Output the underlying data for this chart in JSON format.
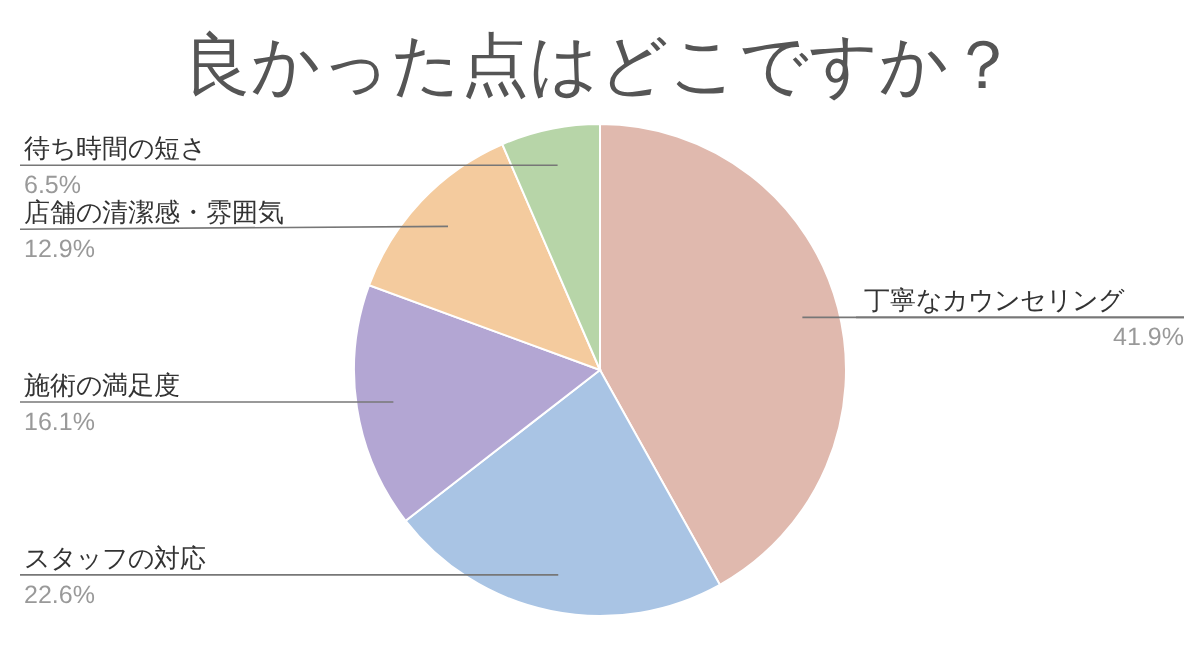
{
  "chart_data": {
    "type": "pie",
    "title": "良かった点はどこですか？",
    "categories": [
      "丁寧なカウンセリング",
      "スタッフの対応",
      "施術の満足度",
      "店舗の清潔感・雰囲気",
      "待ち時間の短さ"
    ],
    "values": [
      41.9,
      22.6,
      16.1,
      12.9,
      6.5
    ],
    "colors": [
      "#e0b9ae",
      "#a9c4e4",
      "#b3a6d3",
      "#f4cb9e",
      "#b7d5a8"
    ],
    "value_labels": [
      "41.9%",
      "22.6%",
      "16.1%",
      "12.9%",
      "6.5%"
    ]
  }
}
